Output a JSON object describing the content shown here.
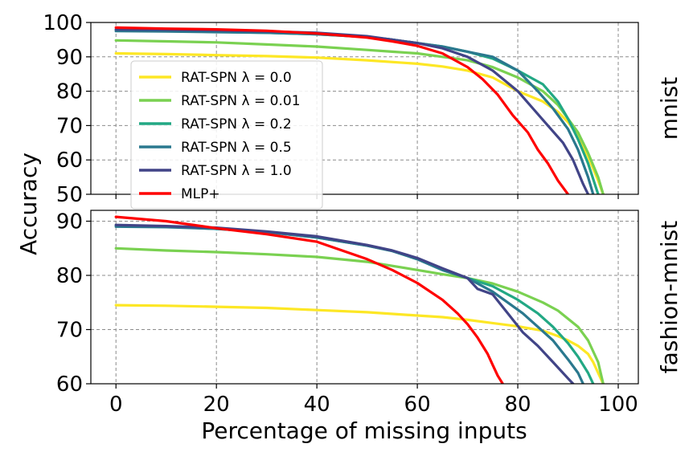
{
  "chart_data": [
    {
      "type": "line",
      "panel_label": "mnist",
      "xlabel": "Percentage of missing inputs",
      "ylabel": "Accuracy",
      "xlim": [
        -5,
        104
      ],
      "ylim": [
        50,
        100
      ],
      "xticks": [
        0,
        20,
        40,
        60,
        80,
        100
      ],
      "yticks": [
        50,
        60,
        70,
        80,
        90,
        100
      ],
      "grid": true,
      "legend_position": "upper-left",
      "series": [
        {
          "name": "RAT-SPN λ = 0.0",
          "color": "#fde725",
          "x": [
            0,
            10,
            20,
            30,
            40,
            50,
            60,
            65,
            70,
            75,
            80,
            85,
            88,
            90,
            92,
            94,
            96,
            97
          ],
          "y": [
            91,
            90.8,
            90.5,
            90.2,
            89.8,
            89,
            88,
            87.2,
            86,
            84,
            80,
            77,
            74,
            71,
            67,
            61,
            54,
            50
          ]
        },
        {
          "name": "RAT-SPN λ = 0.01",
          "color": "#7ad151",
          "x": [
            0,
            10,
            20,
            30,
            40,
            50,
            55,
            60,
            65,
            70,
            75,
            80,
            85,
            88,
            90,
            92,
            94,
            96,
            97
          ],
          "y": [
            94.8,
            94.5,
            94.2,
            93.6,
            93,
            92,
            91.5,
            91,
            90,
            89,
            87,
            84,
            80,
            76,
            72,
            68,
            62,
            55,
            50
          ]
        },
        {
          "name": "RAT-SPN λ = 0.2",
          "color": "#22a884",
          "x": [
            0,
            10,
            20,
            30,
            40,
            50,
            55,
            60,
            65,
            70,
            75,
            80,
            85,
            88,
            90,
            92,
            94,
            96
          ],
          "y": [
            97.8,
            97.6,
            97.3,
            97,
            96.6,
            95.8,
            95,
            94,
            93,
            91.5,
            89.5,
            86,
            82,
            77,
            72,
            66,
            59,
            50
          ]
        },
        {
          "name": "RAT-SPN λ = 0.5",
          "color": "#2a788e",
          "x": [
            0,
            10,
            20,
            30,
            40,
            50,
            55,
            60,
            65,
            70,
            75,
            80,
            84,
            87,
            90,
            92,
            94,
            95
          ],
          "y": [
            97.5,
            97.4,
            97.2,
            97,
            96.6,
            95.8,
            95,
            94,
            93,
            91.5,
            90,
            86,
            80,
            75,
            69,
            63,
            55,
            50
          ]
        },
        {
          "name": "RAT-SPN λ = 1.0",
          "color": "#414487",
          "x": [
            0,
            10,
            20,
            30,
            40,
            50,
            55,
            60,
            65,
            70,
            75,
            80,
            83,
            86,
            89,
            91,
            93,
            94
          ],
          "y": [
            98,
            97.9,
            97.7,
            97.4,
            97,
            96,
            95,
            94,
            92.5,
            90,
            86,
            80,
            75,
            70,
            65,
            60,
            53,
            50
          ]
        },
        {
          "name": "MLP+",
          "color": "#ff0000",
          "x": [
            0,
            10,
            20,
            30,
            40,
            50,
            55,
            60,
            65,
            70,
            73,
            76,
            79,
            82,
            84,
            86,
            88,
            90
          ],
          "y": [
            98.5,
            98.2,
            98,
            97.6,
            96.8,
            95.6,
            94.5,
            93.2,
            91,
            87,
            83.5,
            79,
            73,
            68,
            63,
            59,
            54,
            50
          ]
        }
      ]
    },
    {
      "type": "line",
      "panel_label": "fashion-mnist",
      "xlabel": "Percentage of missing inputs",
      "ylabel": "Accuracy",
      "xlim": [
        -5,
        104
      ],
      "ylim": [
        60,
        92
      ],
      "xticks": [
        0,
        20,
        40,
        60,
        80,
        100
      ],
      "xtick_labels": [
        "0",
        "20",
        "40",
        "60",
        "80",
        "100"
      ],
      "yticks": [
        60,
        70,
        80,
        90
      ],
      "grid": true,
      "series": [
        {
          "name": "RAT-SPN λ = 0.0",
          "color": "#fde725",
          "x": [
            0,
            10,
            20,
            30,
            40,
            50,
            60,
            65,
            70,
            75,
            80,
            85,
            88,
            90,
            92,
            94,
            95,
            96,
            97
          ],
          "y": [
            74.5,
            74.4,
            74.2,
            74,
            73.6,
            73.2,
            72.6,
            72.3,
            71.8,
            71.2,
            70.6,
            69.8,
            68.8,
            68,
            67,
            65.5,
            64,
            62,
            60
          ]
        },
        {
          "name": "RAT-SPN λ = 0.01",
          "color": "#7ad151",
          "x": [
            0,
            10,
            20,
            30,
            40,
            50,
            60,
            65,
            70,
            75,
            80,
            85,
            88,
            90,
            92,
            94,
            96,
            97
          ],
          "y": [
            85,
            84.6,
            84.3,
            83.9,
            83.4,
            82.5,
            81,
            80.2,
            79.5,
            78.5,
            77,
            75,
            73.5,
            72,
            70.5,
            68,
            64,
            60
          ]
        },
        {
          "name": "RAT-SPN λ = 0.2",
          "color": "#22a884",
          "x": [
            0,
            10,
            20,
            30,
            40,
            50,
            55,
            60,
            65,
            70,
            75,
            80,
            84,
            87,
            90,
            92,
            94,
            95
          ],
          "y": [
            89.2,
            89,
            88.6,
            88,
            87,
            85.5,
            84.5,
            83,
            81,
            79.5,
            78,
            75.5,
            73,
            70.5,
            67.5,
            65,
            62,
            60
          ]
        },
        {
          "name": "RAT-SPN λ = 0.5",
          "color": "#2a788e",
          "x": [
            0,
            10,
            20,
            30,
            40,
            50,
            55,
            60,
            65,
            70,
            75,
            78,
            81,
            84,
            87,
            90,
            92,
            93
          ],
          "y": [
            89,
            88.9,
            88.6,
            88,
            87,
            85.5,
            84.5,
            83,
            81,
            79.5,
            77,
            75,
            73,
            70.5,
            68,
            64.5,
            62,
            60
          ]
        },
        {
          "name": "RAT-SPN λ = 1.0",
          "color": "#414487",
          "x": [
            0,
            10,
            20,
            30,
            40,
            50,
            55,
            60,
            65,
            70,
            72,
            75,
            78,
            81,
            84,
            87,
            90,
            91
          ],
          "y": [
            89.3,
            89.1,
            88.8,
            88.1,
            87.2,
            85.6,
            84.6,
            83.2,
            81.3,
            79.5,
            77.5,
            76.5,
            73,
            69.5,
            67,
            64,
            61,
            60
          ]
        },
        {
          "name": "MLP+",
          "color": "#ff0000",
          "x": [
            0,
            10,
            20,
            30,
            40,
            50,
            55,
            60,
            65,
            68,
            70,
            72,
            74,
            75,
            76,
            77
          ],
          "y": [
            90.8,
            90,
            88.7,
            87.6,
            86.2,
            83,
            81,
            78.6,
            75.5,
            73,
            71,
            68.5,
            65.5,
            63.5,
            61.5,
            60
          ]
        }
      ]
    }
  ]
}
